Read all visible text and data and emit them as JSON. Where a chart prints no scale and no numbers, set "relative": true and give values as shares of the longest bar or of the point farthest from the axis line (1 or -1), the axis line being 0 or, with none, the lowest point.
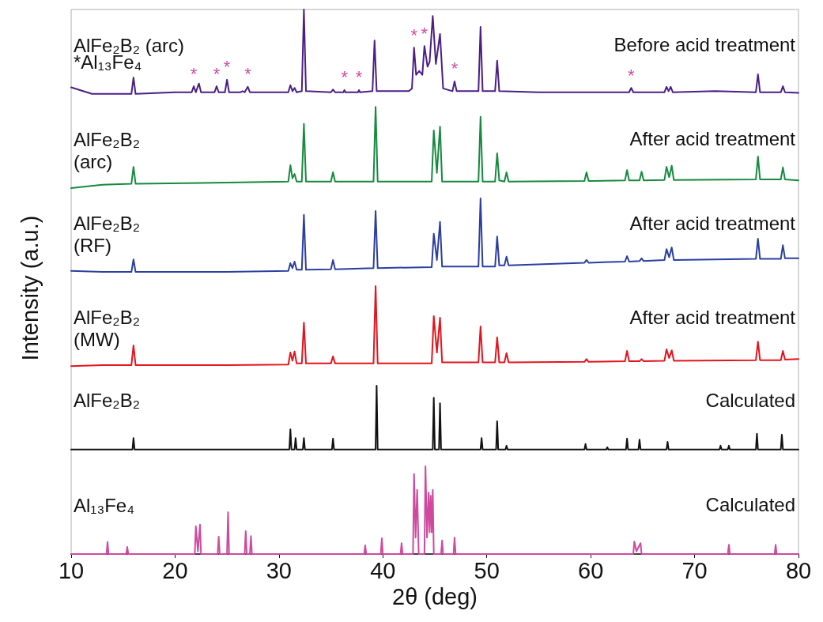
{
  "chart_data": {
    "type": "line",
    "relative": true,
    "xlabel": "2θ (deg)",
    "ylabel": "Intensity (a.u.)",
    "xlim": [
      10,
      80
    ],
    "xticks": [
      10,
      20,
      30,
      40,
      50,
      60,
      70,
      80
    ],
    "grid": false,
    "legend": false,
    "marker": "none",
    "line_style": "solid",
    "series": [
      {
        "name": "AlFe₂B₂ (arc)",
        "color": "#4b1f86",
        "x": [
          10,
          12,
          15.8,
          16.0,
          16.2,
          20,
          21.6,
          21.8,
          22.0,
          22.3,
          22.5,
          23.8,
          24.0,
          24.2,
          24.8,
          25.0,
          25.2,
          26.3,
          26.5,
          26.7,
          27.0,
          27.2,
          30,
          30.9,
          31.1,
          31.3,
          31.5,
          31.7,
          32.2,
          32.4,
          32.6,
          35.0,
          35.2,
          35.4,
          36.2,
          36.3,
          36.4,
          37.6,
          37.7,
          37.8,
          39.0,
          39.2,
          39.4,
          42.5,
          42.8,
          43.0,
          43.2,
          43.5,
          43.8,
          44.0,
          44.3,
          44.5,
          44.8,
          45.1,
          45.5,
          45.8,
          46.7,
          46.9,
          47.1,
          49.2,
          49.4,
          49.6,
          50.8,
          51.0,
          51.2,
          55,
          60,
          63.7,
          63.9,
          64.1,
          67.1,
          67.3,
          67.5,
          67.7,
          67.9,
          72,
          75.9,
          76.1,
          76.3,
          78.3,
          78.5,
          78.7,
          80
        ],
        "values": [
          0.857,
          0.845,
          0.845,
          0.875,
          0.845,
          0.848,
          0.848,
          0.859,
          0.848,
          0.864,
          0.848,
          0.848,
          0.859,
          0.848,
          0.848,
          0.871,
          0.848,
          0.848,
          0.85,
          0.848,
          0.858,
          0.848,
          0.848,
          0.848,
          0.861,
          0.85,
          0.856,
          0.848,
          0.85,
          1.0,
          0.85,
          0.848,
          0.853,
          0.848,
          0.848,
          0.852,
          0.848,
          0.848,
          0.852,
          0.848,
          0.85,
          0.943,
          0.85,
          0.85,
          0.855,
          0.93,
          0.88,
          0.887,
          0.88,
          0.933,
          0.895,
          0.904,
          0.988,
          0.9,
          0.955,
          0.855,
          0.85,
          0.868,
          0.85,
          0.85,
          0.968,
          0.85,
          0.85,
          0.906,
          0.85,
          0.848,
          0.848,
          0.848,
          0.856,
          0.848,
          0.848,
          0.858,
          0.85,
          0.858,
          0.848,
          0.85,
          0.848,
          0.881,
          0.848,
          0.848,
          0.859,
          0.848,
          0.847
        ]
      },
      {
        "name": "AlFe₂B₂\n(arc)",
        "color": "#168a3e",
        "x": [
          10,
          13,
          15.8,
          16.0,
          16.2,
          25,
          30.9,
          31.1,
          31.3,
          31.5,
          31.7,
          32.2,
          32.4,
          32.6,
          35.0,
          35.2,
          35.4,
          39.1,
          39.3,
          39.5,
          44.7,
          44.9,
          45.2,
          45.5,
          45.7,
          49.2,
          49.4,
          49.6,
          50.8,
          51.0,
          51.2,
          51.7,
          51.9,
          52.1,
          59.4,
          59.6,
          59.8,
          63.3,
          63.5,
          63.7,
          64.7,
          64.9,
          65.1,
          67.1,
          67.3,
          67.55,
          67.8,
          68.0,
          75.9,
          76.1,
          76.3,
          78.3,
          78.5,
          78.7,
          80
        ],
        "values": [
          0.672,
          0.678,
          0.68,
          0.711,
          0.68,
          0.682,
          0.684,
          0.714,
          0.69,
          0.698,
          0.684,
          0.684,
          0.79,
          0.684,
          0.684,
          0.701,
          0.684,
          0.684,
          0.821,
          0.684,
          0.684,
          0.778,
          0.7,
          0.785,
          0.684,
          0.684,
          0.803,
          0.684,
          0.684,
          0.736,
          0.686,
          0.684,
          0.701,
          0.684,
          0.685,
          0.701,
          0.685,
          0.686,
          0.705,
          0.686,
          0.686,
          0.702,
          0.686,
          0.687,
          0.711,
          0.692,
          0.713,
          0.687,
          0.688,
          0.73,
          0.688,
          0.688,
          0.71,
          0.688,
          0.686
        ]
      },
      {
        "name": "AlFe₂B₂\n(RF)",
        "color": "#2b3fa0",
        "x": [
          10,
          13,
          15.8,
          16.0,
          16.2,
          25,
          30.9,
          31.1,
          31.3,
          31.5,
          31.7,
          32.2,
          32.4,
          32.6,
          35.0,
          35.2,
          35.4,
          39.1,
          39.3,
          39.5,
          44.7,
          44.9,
          45.2,
          45.5,
          45.7,
          49.2,
          49.4,
          49.6,
          50.8,
          51.0,
          51.2,
          51.7,
          51.9,
          52.1,
          59.4,
          59.6,
          59.8,
          63.3,
          63.5,
          63.7,
          64.7,
          64.9,
          65.1,
          67.1,
          67.3,
          67.55,
          67.8,
          68.0,
          75.9,
          76.1,
          76.3,
          78.3,
          78.5,
          78.7,
          80
        ],
        "values": [
          0.52,
          0.518,
          0.518,
          0.541,
          0.518,
          0.518,
          0.52,
          0.534,
          0.525,
          0.537,
          0.522,
          0.522,
          0.623,
          0.522,
          0.523,
          0.54,
          0.523,
          0.525,
          0.63,
          0.525,
          0.527,
          0.588,
          0.54,
          0.61,
          0.528,
          0.528,
          0.653,
          0.528,
          0.528,
          0.583,
          0.53,
          0.53,
          0.546,
          0.53,
          0.535,
          0.54,
          0.535,
          0.537,
          0.547,
          0.537,
          0.538,
          0.543,
          0.538,
          0.54,
          0.56,
          0.545,
          0.563,
          0.54,
          0.542,
          0.579,
          0.542,
          0.542,
          0.567,
          0.543,
          0.543
        ]
      },
      {
        "name": "AlFe₂B₂\n(MW)",
        "color": "#e4141e",
        "x": [
          10,
          13,
          15.8,
          16.0,
          16.2,
          25,
          30.9,
          31.1,
          31.3,
          31.5,
          31.7,
          32.2,
          32.4,
          32.6,
          35.0,
          35.2,
          35.4,
          39.1,
          39.3,
          39.5,
          44.7,
          44.9,
          45.2,
          45.5,
          45.7,
          49.2,
          49.4,
          49.6,
          50.8,
          51.0,
          51.2,
          51.7,
          51.9,
          52.1,
          59.4,
          59.6,
          59.8,
          63.3,
          63.5,
          63.7,
          64.7,
          64.9,
          65.1,
          67.1,
          67.3,
          67.55,
          67.8,
          68.0,
          75.9,
          76.1,
          76.3,
          78.3,
          78.5,
          78.7,
          80
        ],
        "values": [
          0.345,
          0.347,
          0.347,
          0.383,
          0.347,
          0.347,
          0.348,
          0.37,
          0.355,
          0.372,
          0.35,
          0.35,
          0.425,
          0.35,
          0.35,
          0.363,
          0.35,
          0.35,
          0.492,
          0.35,
          0.35,
          0.437,
          0.37,
          0.434,
          0.352,
          0.352,
          0.418,
          0.352,
          0.352,
          0.398,
          0.352,
          0.352,
          0.369,
          0.352,
          0.353,
          0.358,
          0.353,
          0.354,
          0.373,
          0.354,
          0.354,
          0.358,
          0.354,
          0.355,
          0.376,
          0.36,
          0.374,
          0.355,
          0.356,
          0.39,
          0.356,
          0.356,
          0.373,
          0.357,
          0.358
        ]
      },
      {
        "name": "AlFe₂B₂",
        "color": "#111111",
        "x": [
          10,
          15.9,
          16.0,
          16.1,
          31.0,
          31.1,
          31.2,
          31.5,
          31.6,
          31.7,
          32.3,
          32.4,
          32.5,
          35.1,
          35.2,
          35.3,
          39.3,
          39.4,
          39.5,
          44.8,
          44.9,
          45.0,
          45.4,
          45.5,
          45.6,
          49.4,
          49.5,
          49.6,
          50.9,
          51.0,
          51.1,
          51.8,
          51.9,
          52.0,
          59.4,
          59.5,
          59.6,
          61.5,
          61.6,
          61.7,
          63.4,
          63.5,
          63.6,
          64.6,
          64.7,
          64.8,
          67.3,
          67.4,
          67.5,
          72.4,
          72.5,
          72.6,
          73.2,
          73.3,
          73.4,
          75.9,
          76.0,
          76.1,
          78.3,
          78.4,
          78.5,
          80
        ],
        "values": [
          0.192,
          0.192,
          0.213,
          0.192,
          0.192,
          0.229,
          0.192,
          0.192,
          0.213,
          0.192,
          0.192,
          0.213,
          0.192,
          0.192,
          0.212,
          0.192,
          0.192,
          0.309,
          0.192,
          0.192,
          0.287,
          0.192,
          0.192,
          0.277,
          0.192,
          0.192,
          0.213,
          0.192,
          0.192,
          0.244,
          0.192,
          0.192,
          0.199,
          0.192,
          0.192,
          0.202,
          0.192,
          0.192,
          0.196,
          0.192,
          0.192,
          0.212,
          0.192,
          0.192,
          0.21,
          0.192,
          0.192,
          0.206,
          0.192,
          0.192,
          0.199,
          0.192,
          0.192,
          0.199,
          0.192,
          0.192,
          0.221,
          0.192,
          0.192,
          0.219,
          0.192,
          0.192
        ]
      },
      {
        "name": "Al₁₃Fe₄",
        "color": "#cf4a9e",
        "x": [
          10,
          13.4,
          13.5,
          13.6,
          15.3,
          15.4,
          15.5,
          21.9,
          22.0,
          22.2,
          22.4,
          22.5,
          24.1,
          24.2,
          24.3,
          25.0,
          25.1,
          25.2,
          26.7,
          26.8,
          26.9,
          27.2,
          27.3,
          27.4,
          38.2,
          38.3,
          38.4,
          39.8,
          39.9,
          40.0,
          41.7,
          41.8,
          41.9,
          42.9,
          43.0,
          43.15,
          43.3,
          43.45,
          44.0,
          44.1,
          44.25,
          44.4,
          44.5,
          44.6,
          44.7,
          44.8,
          44.9,
          45.6,
          45.7,
          45.8,
          46.8,
          46.9,
          47.0,
          64.1,
          64.2,
          64.4,
          64.8,
          64.9,
          73.2,
          73.3,
          73.4,
          77.7,
          77.8,
          77.9,
          80
        ],
        "values": [
          0,
          0,
          0.022,
          0,
          0,
          0.013,
          0,
          0,
          0.051,
          0.005,
          0.054,
          0,
          0,
          0.032,
          0,
          0,
          0.077,
          0,
          0,
          0.042,
          0,
          0,
          0.033,
          0,
          0,
          0.016,
          0,
          0,
          0.029,
          0,
          0,
          0.02,
          0,
          0,
          0.147,
          0.03,
          0.118,
          0,
          0,
          0.161,
          0.03,
          0.113,
          0.04,
          0.107,
          0.04,
          0.118,
          0,
          0,
          0.025,
          0,
          0,
          0.03,
          0,
          0,
          0.023,
          0.005,
          0.02,
          0,
          0,
          0.017,
          0,
          0,
          0.017,
          0,
          0
        ]
      }
    ],
    "annotations": [
      "Before acid treatment",
      "After acid treatment",
      "After acid treatment",
      "After acid treatment",
      "Calculated",
      "Calculated",
      "*Al₁₃Fe₄",
      {
        "text": "*",
        "x": 21.8,
        "y": 0.859
      },
      {
        "text": "*",
        "x": 24.0,
        "y": 0.859
      },
      {
        "text": "*",
        "x": 25.0,
        "y": 0.871
      },
      {
        "text": "*",
        "x": 27.0,
        "y": 0.858
      },
      {
        "text": "*",
        "x": 36.3,
        "y": 0.852
      },
      {
        "text": "*",
        "x": 37.7,
        "y": 0.852
      },
      {
        "text": "*",
        "x": 43.0,
        "y": 0.93
      },
      {
        "text": "*",
        "x": 44.0,
        "y": 0.933
      },
      {
        "text": "*",
        "x": 46.9,
        "y": 0.868
      },
      {
        "text": "*",
        "x": 63.9,
        "y": 0.856
      }
    ]
  }
}
